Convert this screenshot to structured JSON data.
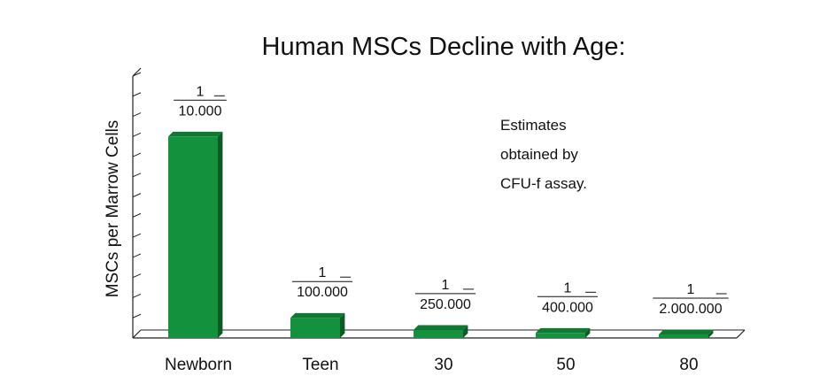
{
  "chart_data": {
    "type": "bar",
    "title": "Human MSCs Decline with Age:",
    "ylabel": "MSCs per Marrow Cells",
    "xlabel": "",
    "categories": [
      "Newborn",
      "Teen",
      "30",
      "50",
      "80"
    ],
    "values": [
      0.0001,
      1e-05,
      4e-06,
      2.5e-06,
      5e-07
    ],
    "data_labels": [
      {
        "numerator": "1",
        "denominator": "10.000"
      },
      {
        "numerator": "1",
        "denominator": "100.000"
      },
      {
        "numerator": "1",
        "denominator": "250.000"
      },
      {
        "numerator": "1",
        "denominator": "400.000"
      },
      {
        "numerator": "1",
        "denominator": "2.000.000"
      }
    ],
    "ylim": [
      0,
      0.00013
    ],
    "grid": false,
    "bar_color": "#14913d",
    "bar_side_color": "#0b5c24",
    "bar_top_color": "#0e7a31"
  },
  "annotation": {
    "lines": [
      "Estimates",
      "obtained by",
      "CFU-f assay."
    ]
  }
}
